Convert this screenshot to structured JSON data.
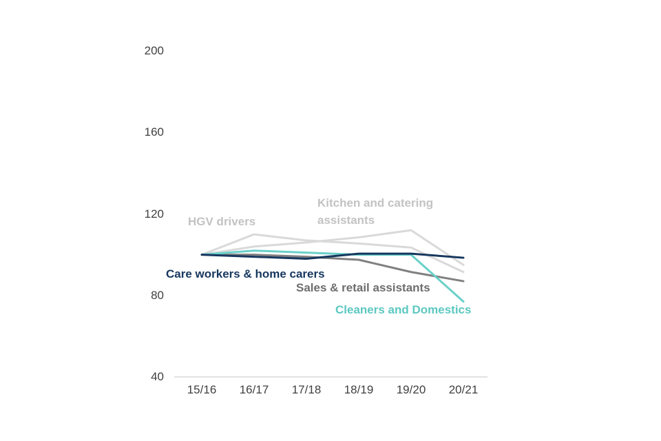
{
  "chart_data": {
    "type": "line",
    "title": "",
    "xlabel": "",
    "ylabel": "",
    "categories": [
      "15/16",
      "16/17",
      "17/18",
      "18/19",
      "19/20",
      "20/21"
    ],
    "y_ticks": [
      200,
      160,
      120,
      80,
      40
    ],
    "ylim": [
      40,
      200
    ],
    "grid": false,
    "legend": "inline-labels",
    "axis_line_color": "#d9d9d9",
    "tick_text_color": "#404040",
    "series": [
      {
        "name": "Kitchen and catering assistants",
        "color": "#d9d9d9",
        "label_color": "#c3c3c3",
        "values": [
          100,
          104,
          106,
          108.5,
          112,
          95
        ]
      },
      {
        "name": "HGV drivers",
        "color": "#d9d9d9",
        "label_color": "#c3c3c3",
        "values": [
          100,
          110,
          107,
          105.5,
          103.5,
          91.5
        ]
      },
      {
        "name": "Sales & retail assistants",
        "color": "#808080",
        "label_color": "#6d6d6d",
        "values": [
          100,
          100,
          99,
          97.5,
          91.5,
          87
        ]
      },
      {
        "name": "Cleaners and Domestics",
        "color": "#69d0c9",
        "label_color": "#5cc8c1",
        "values": [
          100,
          102,
          101,
          100,
          100,
          77
        ]
      },
      {
        "name": "Care workers & home carers",
        "color": "#17375e",
        "label_color": "#17375e",
        "values": [
          100,
          99,
          98,
          100.5,
          100.5,
          98.5
        ]
      }
    ]
  }
}
